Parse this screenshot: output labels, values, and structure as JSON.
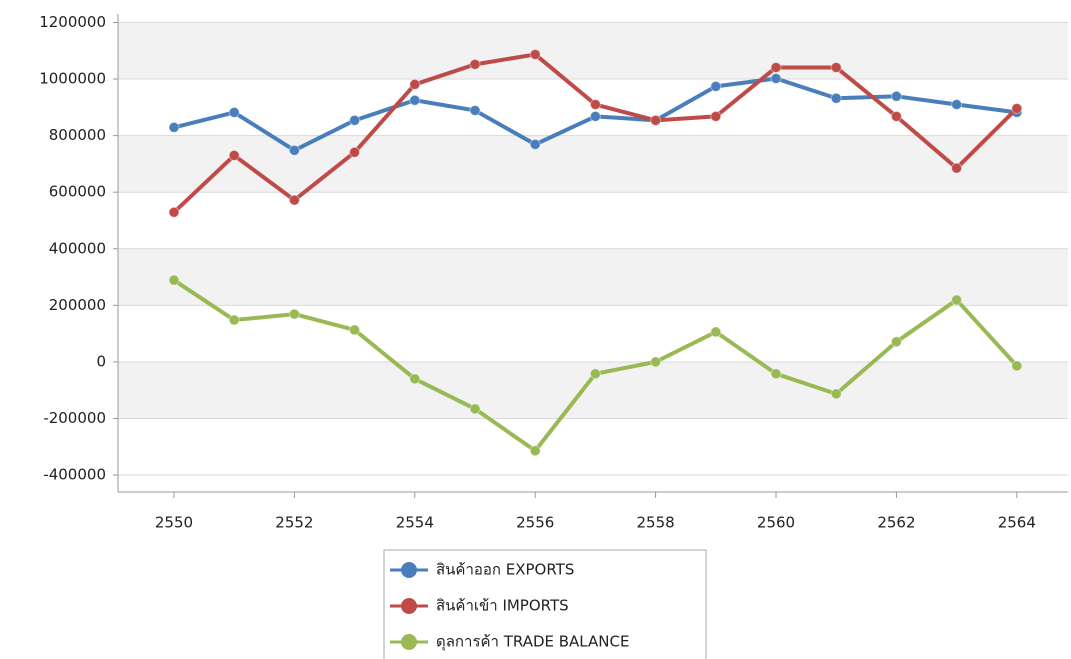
{
  "chart_data": {
    "type": "line",
    "x": [
      2550,
      2551,
      2552,
      2553,
      2554,
      2555,
      2556,
      2557,
      2558,
      2559,
      2560,
      2561,
      2562,
      2563,
      2564
    ],
    "series": [
      {
        "name": "สินค้าออก EXPORTS",
        "color": "#4a7ebb",
        "values": [
          829000,
          882000,
          748000,
          854000,
          925000,
          889000,
          769000,
          868000,
          854000,
          974000,
          1002000,
          932000,
          939000,
          910000,
          882000
        ]
      },
      {
        "name": "สินค้าเข้า IMPORTS",
        "color": "#be4b48",
        "values": [
          529000,
          730000,
          572000,
          741000,
          981000,
          1052000,
          1087000,
          910000,
          854000,
          868000,
          1041000,
          1041000,
          868000,
          685000,
          896000
        ]
      },
      {
        "name": "ดุลการค้า TRADE BALANCE",
        "color": "#98b954",
        "values": [
          289000,
          148000,
          169000,
          113000,
          -60000,
          -166000,
          -314000,
          -42000,
          0,
          106000,
          -42000,
          -113000,
          71000,
          219000,
          -14000
        ]
      }
    ],
    "xlim": [
      2549.07,
      2564.85
    ],
    "xticks": [
      2550,
      2552,
      2554,
      2556,
      2558,
      2560,
      2562,
      2564
    ],
    "ylim": [
      -460000,
      1230000
    ],
    "yticks": [
      -400000,
      -200000,
      0,
      200000,
      400000,
      600000,
      800000,
      1000000,
      1200000
    ],
    "grid": true,
    "legend": "bottom"
  }
}
